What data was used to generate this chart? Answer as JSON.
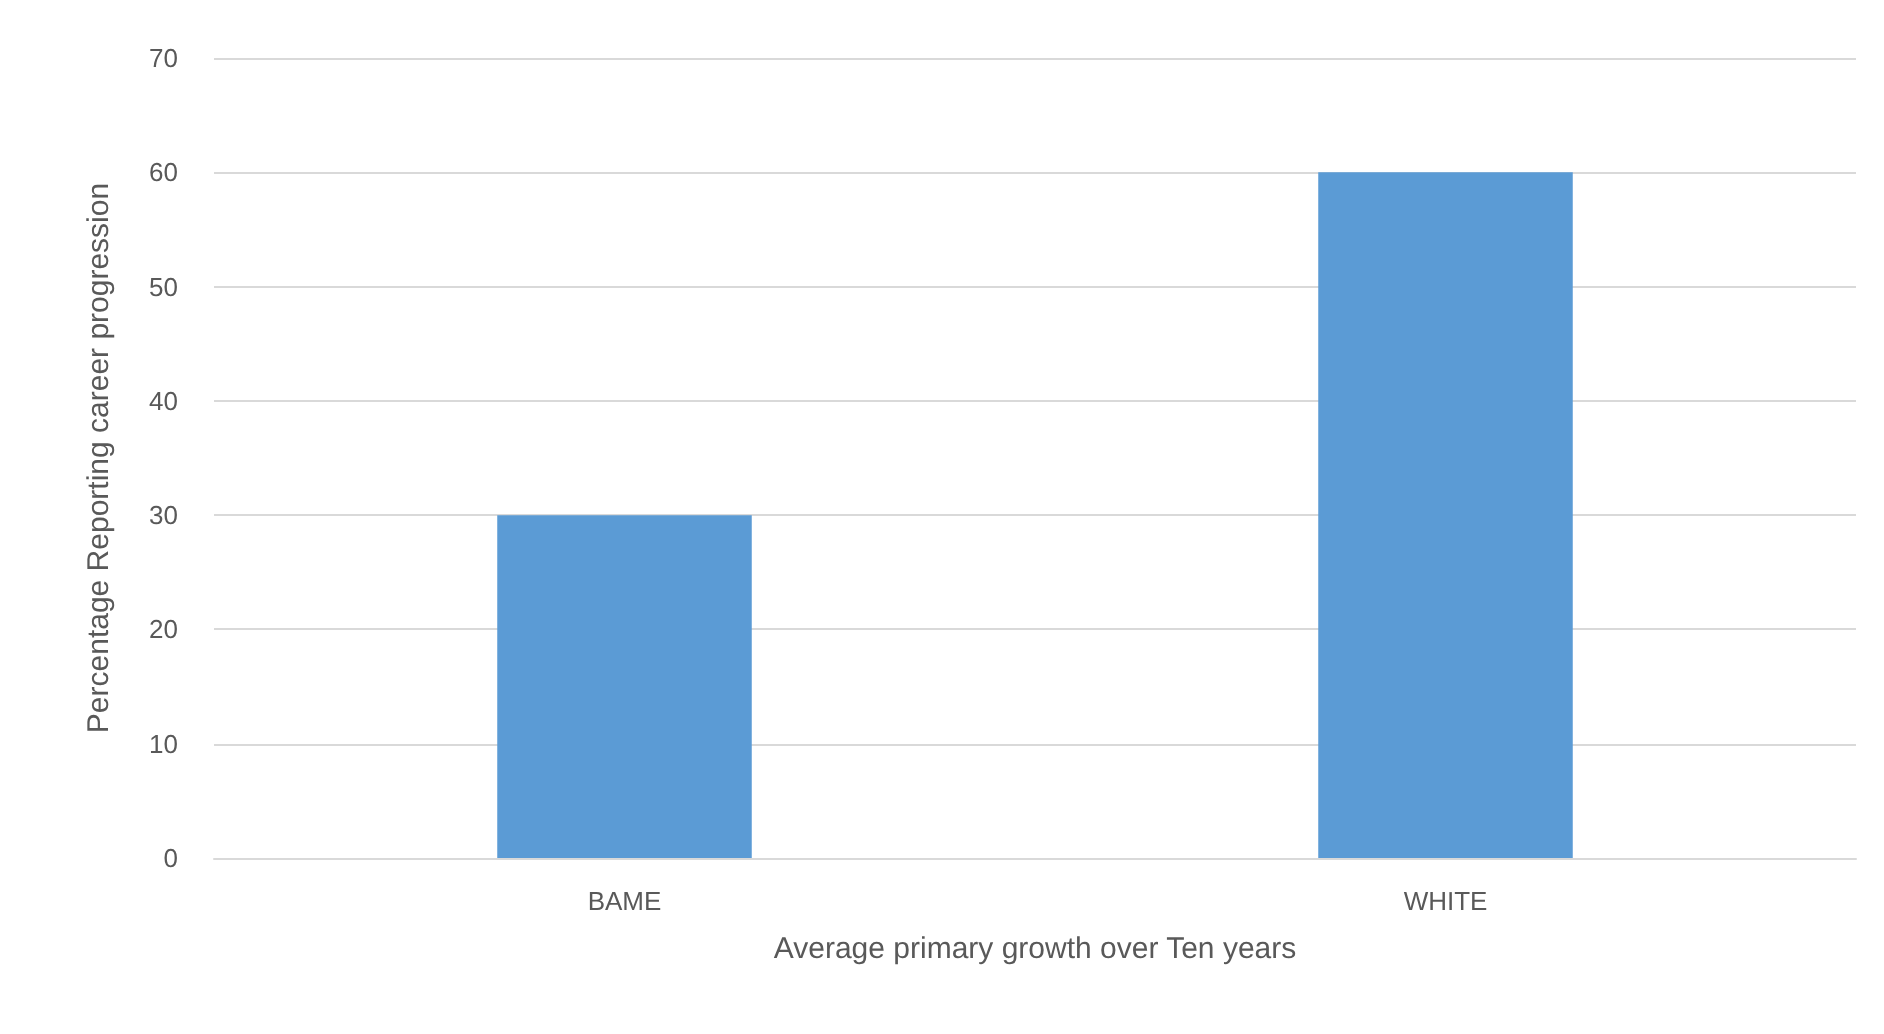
{
  "chart_data": {
    "type": "bar",
    "xlabel": "Average primary growth over Ten years",
    "ylabel": "Percentage Reporting career progression",
    "categories": [
      "BAME",
      "WHITE"
    ],
    "values": [
      30,
      60
    ],
    "color": "#5b9bd5",
    "ylim": [
      0,
      70
    ],
    "yticks": [
      0,
      10,
      20,
      30,
      40,
      50,
      60,
      70
    ],
    "grid": "y"
  }
}
